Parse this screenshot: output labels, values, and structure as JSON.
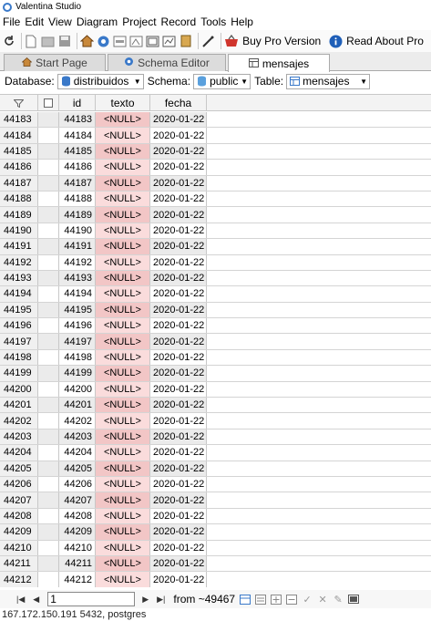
{
  "window": {
    "title": "Valentina Studio"
  },
  "menu": [
    "File",
    "Edit",
    "View",
    "Diagram",
    "Project",
    "Record",
    "Tools",
    "Help"
  ],
  "toolbar": {
    "buy_pro": "Buy Pro Version",
    "read_about": "Read About Pro"
  },
  "tabs": [
    {
      "label": "Start Page",
      "icon": "home-icon"
    },
    {
      "label": "Schema Editor",
      "icon": "schema-icon"
    },
    {
      "label": "mensajes",
      "icon": "table-icon"
    }
  ],
  "filter": {
    "database_label": "Database:",
    "database_value": "distribuidos",
    "schema_label": "Schema:",
    "schema_value": "public",
    "table_label": "Table:",
    "table_value": "mensajes"
  },
  "grid": {
    "columns": [
      "id",
      "texto",
      "fecha"
    ],
    "rows": [
      {
        "n": "44183",
        "id": "44183",
        "texto": "<NULL>",
        "fecha": "2020-01-22"
      },
      {
        "n": "44184",
        "id": "44184",
        "texto": "<NULL>",
        "fecha": "2020-01-22"
      },
      {
        "n": "44185",
        "id": "44185",
        "texto": "<NULL>",
        "fecha": "2020-01-22"
      },
      {
        "n": "44186",
        "id": "44186",
        "texto": "<NULL>",
        "fecha": "2020-01-22"
      },
      {
        "n": "44187",
        "id": "44187",
        "texto": "<NULL>",
        "fecha": "2020-01-22"
      },
      {
        "n": "44188",
        "id": "44188",
        "texto": "<NULL>",
        "fecha": "2020-01-22"
      },
      {
        "n": "44189",
        "id": "44189",
        "texto": "<NULL>",
        "fecha": "2020-01-22"
      },
      {
        "n": "44190",
        "id": "44190",
        "texto": "<NULL>",
        "fecha": "2020-01-22"
      },
      {
        "n": "44191",
        "id": "44191",
        "texto": "<NULL>",
        "fecha": "2020-01-22"
      },
      {
        "n": "44192",
        "id": "44192",
        "texto": "<NULL>",
        "fecha": "2020-01-22"
      },
      {
        "n": "44193",
        "id": "44193",
        "texto": "<NULL>",
        "fecha": "2020-01-22"
      },
      {
        "n": "44194",
        "id": "44194",
        "texto": "<NULL>",
        "fecha": "2020-01-22"
      },
      {
        "n": "44195",
        "id": "44195",
        "texto": "<NULL>",
        "fecha": "2020-01-22"
      },
      {
        "n": "44196",
        "id": "44196",
        "texto": "<NULL>",
        "fecha": "2020-01-22"
      },
      {
        "n": "44197",
        "id": "44197",
        "texto": "<NULL>",
        "fecha": "2020-01-22"
      },
      {
        "n": "44198",
        "id": "44198",
        "texto": "<NULL>",
        "fecha": "2020-01-22"
      },
      {
        "n": "44199",
        "id": "44199",
        "texto": "<NULL>",
        "fecha": "2020-01-22"
      },
      {
        "n": "44200",
        "id": "44200",
        "texto": "<NULL>",
        "fecha": "2020-01-22"
      },
      {
        "n": "44201",
        "id": "44201",
        "texto": "<NULL>",
        "fecha": "2020-01-22"
      },
      {
        "n": "44202",
        "id": "44202",
        "texto": "<NULL>",
        "fecha": "2020-01-22"
      },
      {
        "n": "44203",
        "id": "44203",
        "texto": "<NULL>",
        "fecha": "2020-01-22"
      },
      {
        "n": "44204",
        "id": "44204",
        "texto": "<NULL>",
        "fecha": "2020-01-22"
      },
      {
        "n": "44205",
        "id": "44205",
        "texto": "<NULL>",
        "fecha": "2020-01-22"
      },
      {
        "n": "44206",
        "id": "44206",
        "texto": "<NULL>",
        "fecha": "2020-01-22"
      },
      {
        "n": "44207",
        "id": "44207",
        "texto": "<NULL>",
        "fecha": "2020-01-22"
      },
      {
        "n": "44208",
        "id": "44208",
        "texto": "<NULL>",
        "fecha": "2020-01-22"
      },
      {
        "n": "44209",
        "id": "44209",
        "texto": "<NULL>",
        "fecha": "2020-01-22"
      },
      {
        "n": "44210",
        "id": "44210",
        "texto": "<NULL>",
        "fecha": "2020-01-22"
      },
      {
        "n": "44211",
        "id": "44211",
        "texto": "<NULL>",
        "fecha": "2020-01-22"
      },
      {
        "n": "44212",
        "id": "44212",
        "texto": "<NULL>",
        "fecha": "2020-01-22"
      }
    ]
  },
  "nav": {
    "page_value": "1",
    "from_text": "from ~49467"
  },
  "status": {
    "connection": "167.172.150.191 5432, postgres"
  },
  "colors": {
    "null_cell": "#fadcdc",
    "accent": "#3a79c9"
  }
}
